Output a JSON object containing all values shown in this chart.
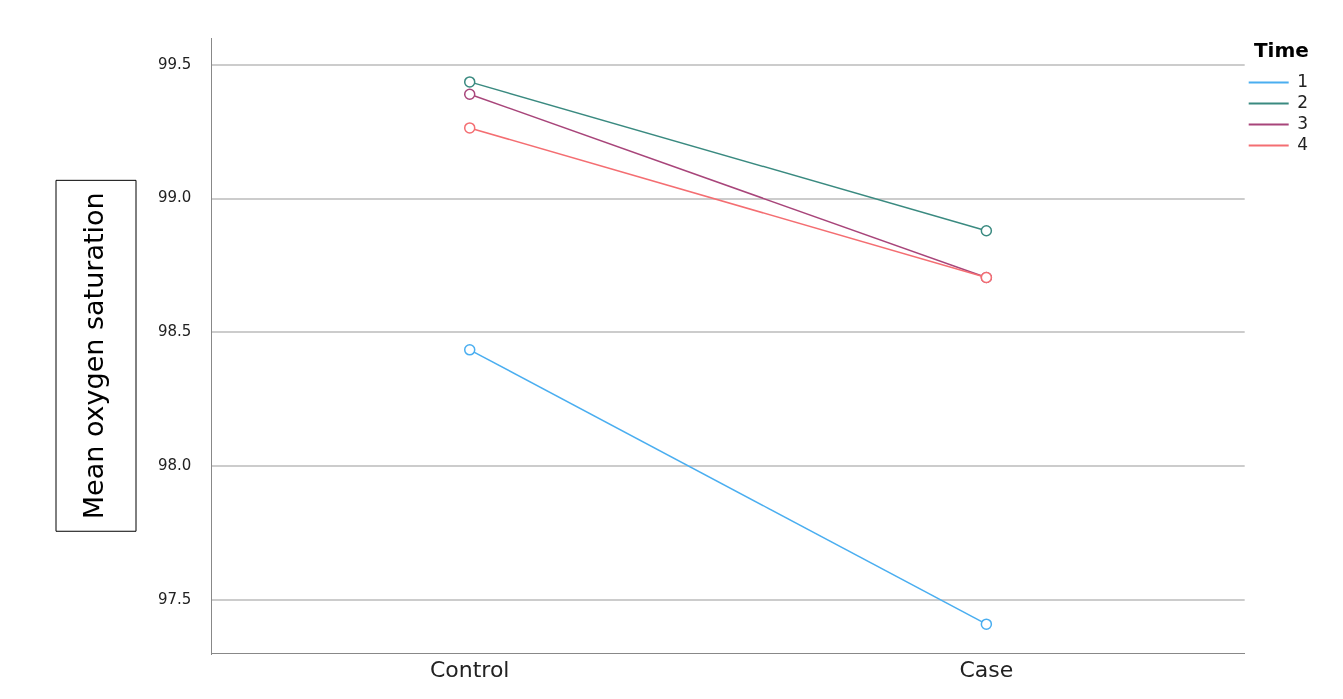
{
  "chart_data": {
    "type": "line",
    "ylabel": "Mean oxygen saturation",
    "legend_title": "Time",
    "categories": [
      "Control",
      "Case"
    ],
    "series": [
      {
        "name": "1",
        "color": "#4aaef0",
        "values": [
          98.435,
          97.41
        ]
      },
      {
        "name": "2",
        "color": "#3a8a80",
        "values": [
          99.436,
          98.88
        ]
      },
      {
        "name": "3",
        "color": "#a8457a",
        "values": [
          99.39,
          98.705
        ]
      },
      {
        "name": "4",
        "color": "#f46e72",
        "values": [
          99.264,
          98.705
        ]
      }
    ],
    "ylim": [
      97.3,
      99.6
    ],
    "yticks": [
      97.5,
      {
        "value": 98,
        "label": "98.0"
      },
      98.5,
      {
        "value": 99,
        "label": "99.0"
      },
      99.5
    ],
    "grid": "y",
    "legend": "top right",
    "marker": "circle",
    "line_style": "solid"
  }
}
